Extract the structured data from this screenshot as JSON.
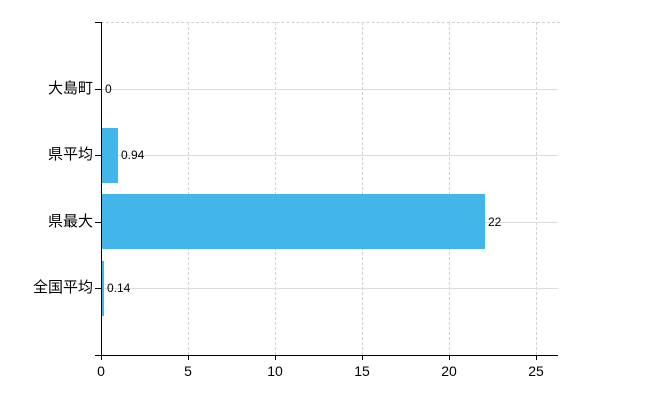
{
  "chart_data": {
    "type": "bar",
    "orientation": "horizontal",
    "categories": [
      "大島町",
      "県平均",
      "県最大",
      "全国平均"
    ],
    "values": [
      0,
      0.94,
      22,
      0.14
    ],
    "value_labels": [
      "0",
      "0.94",
      "22",
      "0.14"
    ],
    "x_tick_labels": [
      "0",
      "5",
      "10",
      "15",
      "20",
      "25"
    ],
    "x_tick_values": [
      0,
      5,
      10,
      15,
      20,
      25
    ],
    "xlim": [
      0,
      26.3
    ],
    "title": "",
    "xlabel": "",
    "ylabel": "",
    "grid": true,
    "legend": false,
    "colors": {
      "bar": "#42b6e8",
      "axis": "#000000",
      "grid_horizontal": "#d8ded8",
      "grid_vertical": "#d5cfd5",
      "text": "#000000",
      "background": "#ffffff"
    }
  }
}
